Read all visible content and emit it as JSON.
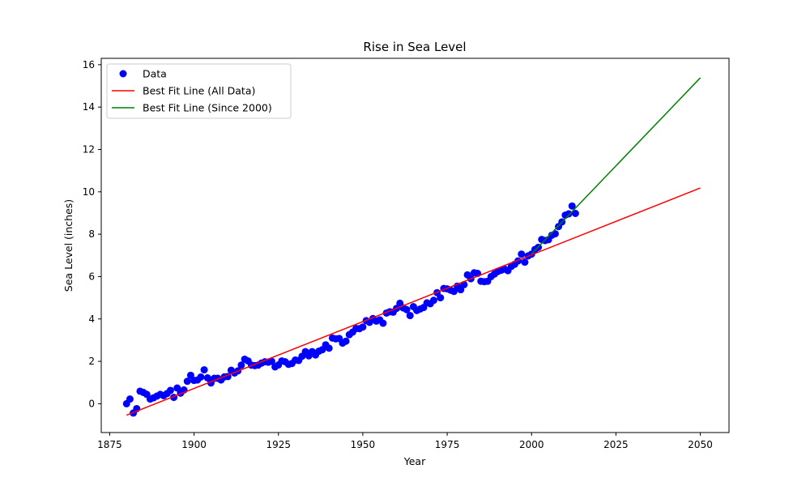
{
  "chart_data": {
    "type": "scatter",
    "title": "Rise in Sea Level",
    "xlabel": "Year",
    "ylabel": "Sea Level (inches)",
    "xlim": [
      1872.5,
      2058.5
    ],
    "ylim": [
      -1.36,
      16.3
    ],
    "xticks": [
      1875,
      1900,
      1925,
      1950,
      1975,
      2000,
      2025,
      2050
    ],
    "yticks": [
      0,
      2,
      4,
      6,
      8,
      10,
      12,
      14,
      16
    ],
    "grid": false,
    "legend_position": "upper-left",
    "colors": {
      "data": "#0000ff",
      "fit_all": "#ff0000",
      "fit_recent": "#008000"
    },
    "series": [
      {
        "name": "Data",
        "kind": "scatter",
        "color": "#0000ff",
        "points": [
          [
            1880,
            0.0
          ],
          [
            1881,
            0.22
          ],
          [
            1882,
            -0.44
          ],
          [
            1883,
            -0.23
          ],
          [
            1884,
            0.59
          ],
          [
            1885,
            0.53
          ],
          [
            1886,
            0.44
          ],
          [
            1887,
            0.22
          ],
          [
            1888,
            0.28
          ],
          [
            1889,
            0.36
          ],
          [
            1890,
            0.44
          ],
          [
            1891,
            0.38
          ],
          [
            1892,
            0.48
          ],
          [
            1893,
            0.63
          ],
          [
            1894,
            0.3
          ],
          [
            1895,
            0.74
          ],
          [
            1896,
            0.5
          ],
          [
            1897,
            0.65
          ],
          [
            1898,
            1.06
          ],
          [
            1899,
            1.34
          ],
          [
            1900,
            1.1
          ],
          [
            1901,
            1.12
          ],
          [
            1902,
            1.26
          ],
          [
            1903,
            1.6
          ],
          [
            1904,
            1.22
          ],
          [
            1905,
            0.98
          ],
          [
            1906,
            1.2
          ],
          [
            1907,
            1.2
          ],
          [
            1908,
            1.12
          ],
          [
            1909,
            1.27
          ],
          [
            1910,
            1.28
          ],
          [
            1911,
            1.58
          ],
          [
            1912,
            1.45
          ],
          [
            1913,
            1.55
          ],
          [
            1914,
            1.82
          ],
          [
            1915,
            2.1
          ],
          [
            1916,
            2.02
          ],
          [
            1917,
            1.82
          ],
          [
            1918,
            1.8
          ],
          [
            1919,
            1.82
          ],
          [
            1920,
            1.92
          ],
          [
            1921,
            1.98
          ],
          [
            1922,
            1.96
          ],
          [
            1923,
            2.0
          ],
          [
            1924,
            1.74
          ],
          [
            1925,
            1.83
          ],
          [
            1926,
            2.02
          ],
          [
            1927,
            1.98
          ],
          [
            1928,
            1.86
          ],
          [
            1929,
            1.9
          ],
          [
            1930,
            2.06
          ],
          [
            1931,
            2.04
          ],
          [
            1932,
            2.24
          ],
          [
            1933,
            2.46
          ],
          [
            1934,
            2.26
          ],
          [
            1935,
            2.46
          ],
          [
            1936,
            2.3
          ],
          [
            1937,
            2.48
          ],
          [
            1938,
            2.55
          ],
          [
            1939,
            2.78
          ],
          [
            1940,
            2.62
          ],
          [
            1941,
            3.1
          ],
          [
            1942,
            3.06
          ],
          [
            1943,
            3.08
          ],
          [
            1944,
            2.86
          ],
          [
            1945,
            2.95
          ],
          [
            1946,
            3.26
          ],
          [
            1947,
            3.38
          ],
          [
            1948,
            3.55
          ],
          [
            1949,
            3.54
          ],
          [
            1950,
            3.62
          ],
          [
            1951,
            3.92
          ],
          [
            1952,
            3.84
          ],
          [
            1953,
            4.02
          ],
          [
            1954,
            3.9
          ],
          [
            1955,
            3.96
          ],
          [
            1956,
            3.8
          ],
          [
            1957,
            4.28
          ],
          [
            1958,
            4.34
          ],
          [
            1959,
            4.32
          ],
          [
            1960,
            4.5
          ],
          [
            1961,
            4.74
          ],
          [
            1962,
            4.52
          ],
          [
            1963,
            4.44
          ],
          [
            1964,
            4.16
          ],
          [
            1965,
            4.58
          ],
          [
            1966,
            4.4
          ],
          [
            1967,
            4.47
          ],
          [
            1968,
            4.54
          ],
          [
            1969,
            4.76
          ],
          [
            1970,
            4.72
          ],
          [
            1971,
            4.88
          ],
          [
            1972,
            5.24
          ],
          [
            1973,
            5.0
          ],
          [
            1974,
            5.44
          ],
          [
            1975,
            5.42
          ],
          [
            1976,
            5.36
          ],
          [
            1977,
            5.3
          ],
          [
            1978,
            5.55
          ],
          [
            1979,
            5.38
          ],
          [
            1980,
            5.62
          ],
          [
            1981,
            6.08
          ],
          [
            1982,
            5.9
          ],
          [
            1983,
            6.18
          ],
          [
            1984,
            6.15
          ],
          [
            1985,
            5.78
          ],
          [
            1986,
            5.76
          ],
          [
            1987,
            5.78
          ],
          [
            1988,
            6.0
          ],
          [
            1989,
            6.12
          ],
          [
            1990,
            6.24
          ],
          [
            1991,
            6.3
          ],
          [
            1992,
            6.35
          ],
          [
            1993,
            6.28
          ],
          [
            1994,
            6.48
          ],
          [
            1995,
            6.58
          ],
          [
            1996,
            6.74
          ],
          [
            1997,
            7.06
          ],
          [
            1998,
            6.68
          ],
          [
            1999,
            6.98
          ],
          [
            2000,
            7.06
          ],
          [
            2001,
            7.28
          ],
          [
            2002,
            7.38
          ],
          [
            2003,
            7.75
          ],
          [
            2004,
            7.7
          ],
          [
            2005,
            7.74
          ],
          [
            2006,
            7.95
          ],
          [
            2007,
            8.02
          ],
          [
            2008,
            8.36
          ],
          [
            2009,
            8.58
          ],
          [
            2010,
            8.9
          ],
          [
            2011,
            8.96
          ],
          [
            2012,
            9.33
          ],
          [
            2013,
            8.98
          ]
        ]
      },
      {
        "name": "Best Fit Line (All Data)",
        "kind": "line",
        "color": "#ff0000",
        "x": [
          1880,
          2050
        ],
        "y": [
          -0.54,
          10.18
        ]
      },
      {
        "name": "Best Fit Line (Since 2000)",
        "kind": "line",
        "color": "#008000",
        "x": [
          2000,
          2050
        ],
        "y": [
          7.07,
          15.38
        ]
      }
    ]
  }
}
